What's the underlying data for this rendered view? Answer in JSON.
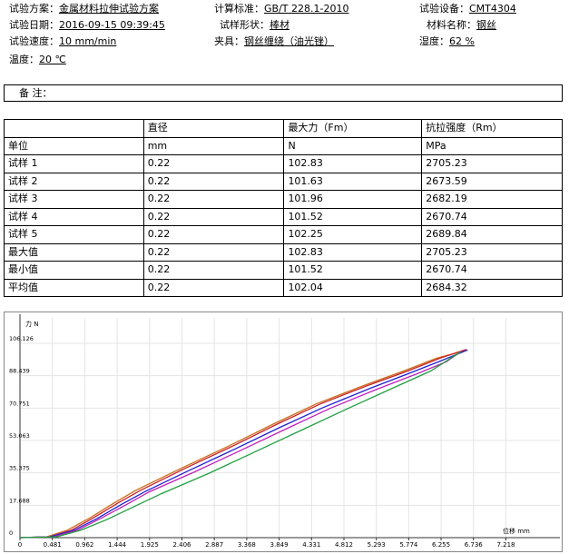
{
  "fields": [
    {
      "label": "试验方案：",
      "value": "金属材料拉伸试验方案"
    },
    {
      "label": "计算标准：",
      "value": "GB/T 228.1-2010"
    },
    {
      "label": "试验设备：",
      "value": "CMT4304"
    },
    {
      "label": "试验日期：",
      "value": "2016-09-15 09:39:45"
    },
    {
      "label": "试样形状：",
      "value": "棒材"
    },
    {
      "label": "材料名称：",
      "value": "钢丝"
    },
    {
      "label": "试验速度：",
      "value": "10 mm/min"
    },
    {
      "label": "夹具：",
      "value": "钢丝缠绕（油光锉）"
    },
    {
      "label": "湿度：",
      "value": "62 %"
    },
    {
      "label": "温度：",
      "value": "20 ℃"
    }
  ],
  "remark": "备 注：",
  "table": {
    "header": [
      "直径",
      "最大力（Fm）",
      "抗拉强度（Rm）"
    ],
    "units": {
      "label": "单位",
      "values": [
        "mm",
        "N",
        "MPa"
      ]
    },
    "rows": [
      {
        "label": "试样 1",
        "values": [
          0.22,
          102.83,
          2705.23
        ]
      },
      {
        "label": "试样 2",
        "values": [
          0.22,
          101.63,
          2673.59
        ]
      },
      {
        "label": "试样 3",
        "values": [
          0.22,
          101.96,
          2682.19
        ]
      },
      {
        "label": "试样 4",
        "values": [
          0.22,
          101.52,
          2670.74
        ]
      },
      {
        "label": "试样 5",
        "values": [
          0.22,
          102.25,
          2689.84
        ]
      },
      {
        "label": "最大值",
        "values": [
          0.22,
          102.83,
          2705.23
        ]
      },
      {
        "label": "最小值",
        "values": [
          0.22,
          101.52,
          2670.74
        ]
      },
      {
        "label": "平均值",
        "values": [
          0.22,
          102.04,
          2684.32
        ]
      }
    ]
  },
  "chart_data": {
    "type": "line",
    "y_label": "力 N",
    "x_label": "位移 mm",
    "grid": true,
    "xlim": [
      0,
      8.02
    ],
    "ylim": [
      0,
      120
    ],
    "xticks": [
      0,
      0.481,
      0.962,
      1.444,
      1.925,
      2.406,
      2.887,
      3.368,
      3.849,
      4.331,
      4.812,
      5.293,
      5.774,
      6.255,
      6.736,
      7.218
    ],
    "yticks": [
      0,
      17.688,
      35.375,
      53.063,
      70.751,
      88.439,
      106.126
    ],
    "series": [
      {
        "color": "#c07020",
        "x": [
          0,
          0.4,
          0.7,
          1.05,
          1.4,
          1.73,
          2.4,
          3.1,
          3.76,
          4.4,
          5.1,
          5.7,
          6.19,
          6.6
        ],
        "values": [
          0,
          0.5,
          4,
          11,
          19,
          26,
          38,
          50,
          62,
          73,
          83,
          91,
          98,
          102
        ]
      },
      {
        "color": "#d02020",
        "x": [
          0,
          0.45,
          0.76,
          1.1,
          1.46,
          1.8,
          2.46,
          3.16,
          3.82,
          4.46,
          5.16,
          5.76,
          6.24,
          6.63
        ],
        "values": [
          0,
          0.5,
          4,
          11,
          19,
          26,
          38,
          50,
          62,
          73,
          83,
          91,
          98,
          102.8
        ]
      },
      {
        "color": "#2020d0",
        "x": [
          0,
          0.45,
          0.8,
          1.15,
          1.5,
          1.85,
          2.5,
          3.2,
          3.85,
          4.5,
          5.2,
          5.8,
          6.25,
          6.65
        ],
        "values": [
          0,
          0.5,
          4,
          10.5,
          18,
          25,
          36.5,
          48.5,
          60,
          71,
          81.5,
          90,
          96.5,
          102.5
        ]
      },
      {
        "color": "#c020c0",
        "x": [
          0,
          0.5,
          0.85,
          1.2,
          1.58,
          1.92,
          2.6,
          3.3,
          3.96,
          4.6,
          5.3,
          5.9,
          6.33,
          6.55
        ],
        "values": [
          0,
          0.5,
          4,
          10.5,
          18,
          25,
          36,
          48,
          59.5,
          70.5,
          81,
          89.5,
          96,
          101.5
        ]
      },
      {
        "color": "#20a040",
        "x": [
          0,
          0.55,
          0.9,
          1.3,
          1.7,
          2.1,
          2.8,
          3.5,
          4.2,
          4.9,
          5.5,
          6.1,
          6.55
        ],
        "values": [
          0,
          0.5,
          4,
          10,
          17,
          24,
          35,
          47,
          59,
          71,
          81,
          91,
          101.5
        ]
      }
    ]
  }
}
